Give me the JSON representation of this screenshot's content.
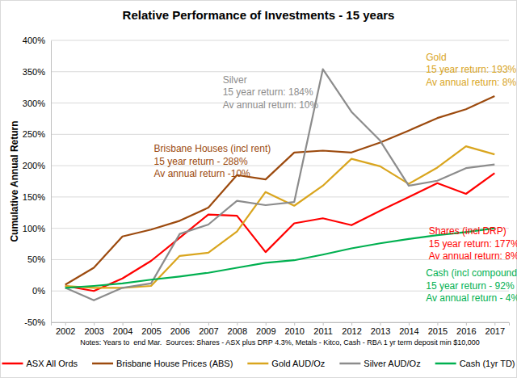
{
  "chart_data": {
    "type": "line",
    "title": "Relative Performance of Investments - 15 years",
    "y_label": "Cumulative Annual Return",
    "caption": "Notes: Years to  end Mar.  Sources: Shares - ASX plus DRP 4.3%, Metals - Kitco, Cash - RBA 1 yr term deposit min $10,000",
    "categories": [
      "2002",
      "2003",
      "2004",
      "2005",
      "2006",
      "2007",
      "2008",
      "2009",
      "2010",
      "2011",
      "2012",
      "2013",
      "2014",
      "2015",
      "2016",
      "2017"
    ],
    "series": [
      {
        "name": "ASX All Ords",
        "color": "#ff0000",
        "values": [
          8,
          0,
          20,
          48,
          85,
          122,
          120,
          62,
          108,
          116,
          105,
          128,
          150,
          172,
          155,
          188
        ]
      },
      {
        "name": "Brisbane House Prices (ABS)",
        "color": "#9c4a0e",
        "values": [
          10,
          37,
          87,
          98,
          112,
          133,
          185,
          178,
          221,
          224,
          221,
          237,
          256,
          276,
          290,
          311
        ]
      },
      {
        "name": "Gold AUD/Oz",
        "color": "#d9a51e",
        "values": [
          8,
          5,
          5,
          8,
          56,
          61,
          95,
          158,
          136,
          168,
          211,
          199,
          171,
          197,
          231,
          218
        ]
      },
      {
        "name": "Silver AUD/Oz",
        "color": "#8c8c8c",
        "values": [
          5,
          -15,
          5,
          12,
          91,
          106,
          144,
          137,
          142,
          354,
          286,
          240,
          168,
          176,
          196,
          202
        ]
      },
      {
        "name": "Cash (1yr TD)",
        "color": "#00b050",
        "values": [
          5,
          8,
          12,
          18,
          23,
          29,
          37,
          45,
          49,
          58,
          68,
          76,
          83,
          89,
          94,
          100
        ]
      }
    ],
    "annotations": [
      {
        "color": "#8c8c8c",
        "lines": [
          "Silver",
          "15 year return: 184%",
          "Av annual return: 10%"
        ]
      },
      {
        "color": "#d9a51e",
        "lines": [
          "Gold",
          "15 year return: 193%",
          "Av annual return: 8%"
        ]
      },
      {
        "color": "#9c4a0e",
        "lines": [
          "Brisbane Houses (incl rent)",
          "15 year return - 288%",
          "Av annual return -10%"
        ]
      },
      {
        "color": "#ff0000",
        "lines": [
          "Shares (incl DRP)",
          "15 year return: 177%",
          "Av annual return: 8%"
        ]
      },
      {
        "color": "#00b050",
        "lines": [
          "Cash (incl compounding int)",
          "15 year return - 92%",
          "Av annual return - 4%"
        ]
      }
    ],
    "ylim": [
      -50,
      400
    ],
    "yticks": [
      {
        "value": -50,
        "label": "-50%"
      },
      {
        "value": 0,
        "label": "0%"
      },
      {
        "value": 50,
        "label": "50%"
      },
      {
        "value": 100,
        "label": "100%"
      },
      {
        "value": 150,
        "label": "150%"
      },
      {
        "value": 200,
        "label": "200%"
      },
      {
        "value": 250,
        "label": "250%"
      },
      {
        "value": 300,
        "label": "300%"
      },
      {
        "value": 350,
        "label": "350%"
      },
      {
        "value": 400,
        "label": "400%"
      }
    ],
    "grid": true,
    "legend": "bottom"
  }
}
